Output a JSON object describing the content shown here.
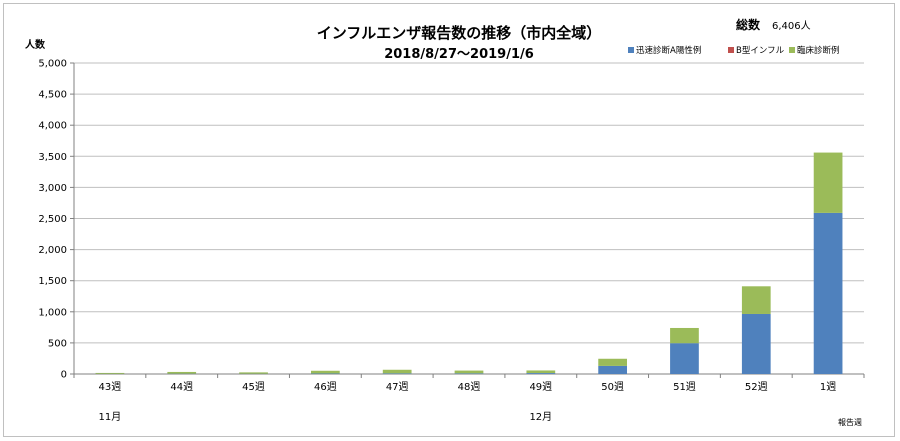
{
  "header": {
    "title": "インフルエンザ報告数の推移（市内全域）",
    "subtitle": "2018/8/27～2019/1/6",
    "total_label": "総数",
    "total_value": "6,406人"
  },
  "chart_data": {
    "type": "bar",
    "stacked": true,
    "ylabel": "人数",
    "xlabel": "報告週",
    "ylim": [
      0,
      5000
    ],
    "yticks": [
      "0",
      "500",
      "1,000",
      "1,500",
      "2,000",
      "2,500",
      "3,000",
      "3,500",
      "4,000",
      "4,500",
      "5,000"
    ],
    "ytick_values": [
      0,
      500,
      1000,
      1500,
      2000,
      2500,
      3000,
      3500,
      4000,
      4500,
      5000
    ],
    "grid": true,
    "legend_position": "top-right",
    "categories": [
      "43週",
      "44週",
      "45週",
      "46週",
      "47週",
      "48週",
      "49週",
      "50週",
      "51週",
      "52週",
      "1週"
    ],
    "month_labels": [
      {
        "label": "11月",
        "category_index": 0
      },
      {
        "label": "12月",
        "category_index": 6
      }
    ],
    "series": [
      {
        "name": "迅速診断A陽性例",
        "color": "#4f81bd",
        "values": [
          3,
          5,
          4,
          8,
          10,
          10,
          15,
          130,
          495,
          965,
          2590
        ]
      },
      {
        "name": "B型インフル",
        "color": "#c0504d",
        "values": [
          0,
          0,
          0,
          0,
          0,
          0,
          0,
          0,
          0,
          0,
          0
        ]
      },
      {
        "name": "臨床診断例",
        "color": "#9bbb59",
        "values": [
          14,
          28,
          22,
          44,
          58,
          45,
          42,
          115,
          245,
          445,
          970
        ]
      }
    ]
  }
}
